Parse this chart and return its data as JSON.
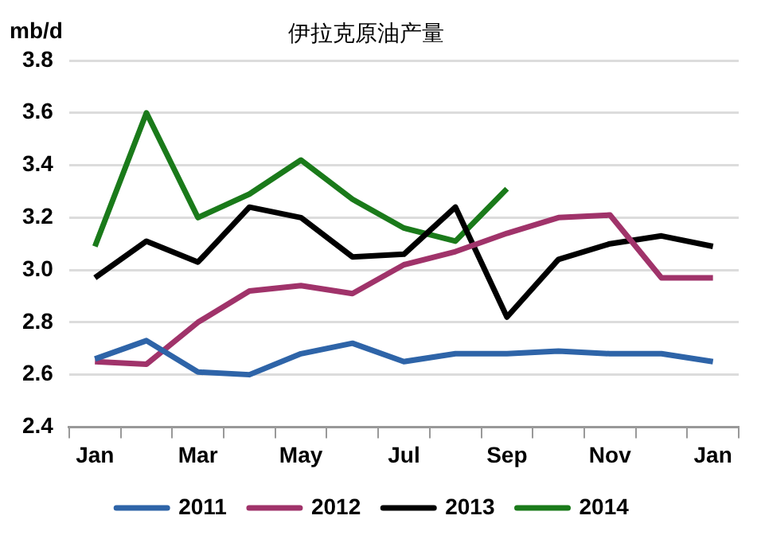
{
  "chart_data": {
    "type": "line",
    "title": "伊拉克原油产量",
    "ylabel": "mb/d",
    "categories": [
      "Jan",
      null,
      "Mar",
      null,
      "May",
      null,
      "Jul",
      null,
      "Sep",
      null,
      "Nov",
      null,
      "Jan"
    ],
    "series": [
      {
        "name": "2011",
        "color": "#2e64a8",
        "values": [
          2.66,
          2.73,
          2.61,
          2.6,
          2.68,
          2.72,
          2.65,
          2.68,
          2.68,
          2.69,
          2.68,
          2.68,
          2.65
        ]
      },
      {
        "name": "2012",
        "color": "#a0336a",
        "values": [
          2.65,
          2.64,
          2.8,
          2.92,
          2.94,
          2.91,
          3.02,
          3.07,
          3.14,
          3.2,
          3.21,
          2.97,
          2.97
        ]
      },
      {
        "name": "2013",
        "color": "#000000",
        "values": [
          2.97,
          3.11,
          3.03,
          3.24,
          3.2,
          3.05,
          3.06,
          3.24,
          2.82,
          3.04,
          3.1,
          3.13,
          3.09
        ]
      },
      {
        "name": "2014",
        "color": "#1a7a1a",
        "values": [
          3.09,
          3.6,
          3.2,
          3.29,
          3.42,
          3.27,
          3.16,
          3.11,
          3.31,
          null,
          null,
          null,
          null
        ]
      }
    ],
    "ylim": [
      2.4,
      3.8
    ],
    "yticks": [
      2.4,
      2.6,
      2.8,
      {
        "value": 3,
        "label": "3.0"
      },
      3.2,
      3.4,
      3.6,
      3.8
    ],
    "grid": "y",
    "legend": "bottom",
    "marker": "none",
    "line_style": "solid"
  }
}
